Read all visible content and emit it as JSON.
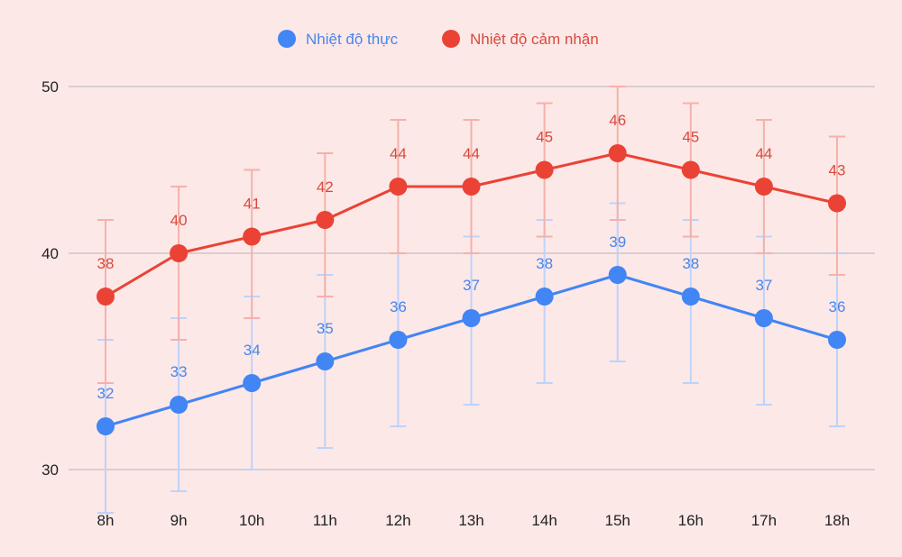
{
  "chart_data": {
    "type": "line",
    "categories": [
      "8h",
      "9h",
      "10h",
      "11h",
      "12h",
      "13h",
      "14h",
      "15h",
      "16h",
      "17h",
      "18h"
    ],
    "series": [
      {
        "name": "Nhiệt độ thực",
        "color": "#4285f4",
        "values": [
          32,
          33,
          34,
          35,
          36,
          37,
          38,
          39,
          38,
          37,
          36
        ],
        "error_bars": true
      },
      {
        "name": "Nhiệt độ cảm nhận",
        "color": "#ea4335",
        "values": [
          38,
          40,
          41,
          42,
          44,
          44,
          45,
          46,
          45,
          44,
          43
        ],
        "error_bars": true
      }
    ],
    "ylim": [
      28,
      52
    ],
    "yticks": [
      30,
      40,
      50
    ],
    "grid": true,
    "legend": "top-center",
    "title": "",
    "xlabel": "",
    "ylabel": ""
  }
}
